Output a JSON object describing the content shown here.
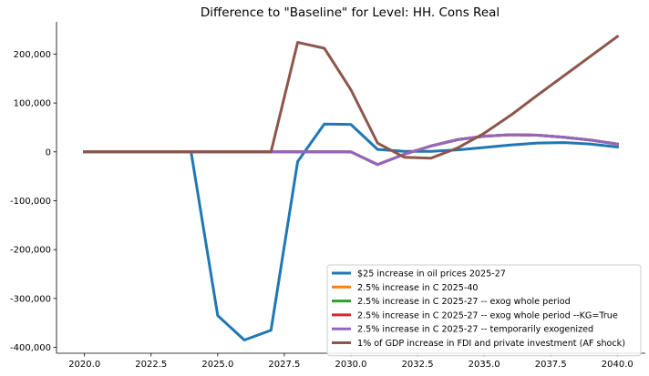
{
  "chart_data": {
    "type": "line",
    "title": "Difference to \"Baseline\" for Level: HH. Cons Real",
    "xlabel": "",
    "ylabel": "",
    "xlim": [
      2018.95,
      2041.05
    ],
    "ylim": [
      -412000,
      266000
    ],
    "x_ticks": [
      2020.0,
      2022.5,
      2025.0,
      2027.5,
      2030.0,
      2032.5,
      2035.0,
      2037.5,
      2040.0
    ],
    "x_tick_labels": [
      "2020.0",
      "2022.5",
      "2025.0",
      "2027.5",
      "2030.0",
      "2032.5",
      "2035.0",
      "2037.5",
      "2040.0"
    ],
    "y_ticks": [
      -400000,
      -300000,
      -200000,
      -100000,
      0,
      100000,
      200000
    ],
    "y_tick_labels": [
      "-400,000",
      "-300,000",
      "-200,000",
      "-100,000",
      "0",
      "100,000",
      "200,000"
    ],
    "grid": false,
    "legend_position": "lower-right",
    "x": [
      2020,
      2021,
      2022,
      2023,
      2024,
      2025,
      2026,
      2027,
      2028,
      2029,
      2030,
      2031,
      2032,
      2033,
      2034,
      2035,
      2036,
      2037,
      2038,
      2039,
      2040
    ],
    "series": [
      {
        "name": "$25 increase in oil prices 2025-27",
        "color": "#1f77b4",
        "values": [
          0,
          0,
          0,
          0,
          0,
          -335000,
          -385000,
          -365000,
          -20000,
          57000,
          56000,
          5000,
          1000,
          1000,
          4000,
          9000,
          14000,
          18000,
          19000,
          16000,
          10000
        ]
      },
      {
        "name": "2.5% increase in C 2025-40",
        "color": "#ff7f0e",
        "values": [
          0,
          0,
          0,
          0,
          0,
          0,
          0,
          0,
          0,
          0,
          0,
          -26000,
          -5000,
          12000,
          25000,
          32000,
          35000,
          34000,
          30000,
          24000,
          16000
        ]
      },
      {
        "name": "2.5% increase in C 2025-27 -- exog whole period",
        "color": "#2ca02c",
        "values": [
          0,
          0,
          0,
          0,
          0,
          0,
          0,
          0,
          0,
          0,
          0,
          -26000,
          -5000,
          12000,
          25000,
          32000,
          35000,
          34000,
          30000,
          24000,
          16000
        ]
      },
      {
        "name": "2.5% increase in C 2025-27 -- exog whole period --KG=True",
        "color": "#d62728",
        "values": [
          0,
          0,
          0,
          0,
          0,
          0,
          0,
          0,
          0,
          0,
          0,
          -26000,
          -5000,
          12000,
          25000,
          32000,
          35000,
          34000,
          30000,
          24000,
          16000
        ]
      },
      {
        "name": "2.5% increase in C 2025-27 -- temporarily exogenized",
        "color": "#9467bd",
        "values": [
          0,
          0,
          0,
          0,
          0,
          0,
          0,
          0,
          0,
          0,
          0,
          -26000,
          -5000,
          12000,
          25000,
          32000,
          35000,
          34000,
          30000,
          24000,
          16000
        ]
      },
      {
        "name": "1% of GDP increase in FDI and private investment (AF shock)",
        "color": "#8c564b",
        "values": [
          0,
          0,
          0,
          0,
          0,
          0,
          0,
          0,
          224000,
          212000,
          127000,
          18000,
          -11000,
          -13000,
          8000,
          38000,
          75000,
          116000,
          156000,
          196000,
          236000
        ]
      }
    ]
  }
}
